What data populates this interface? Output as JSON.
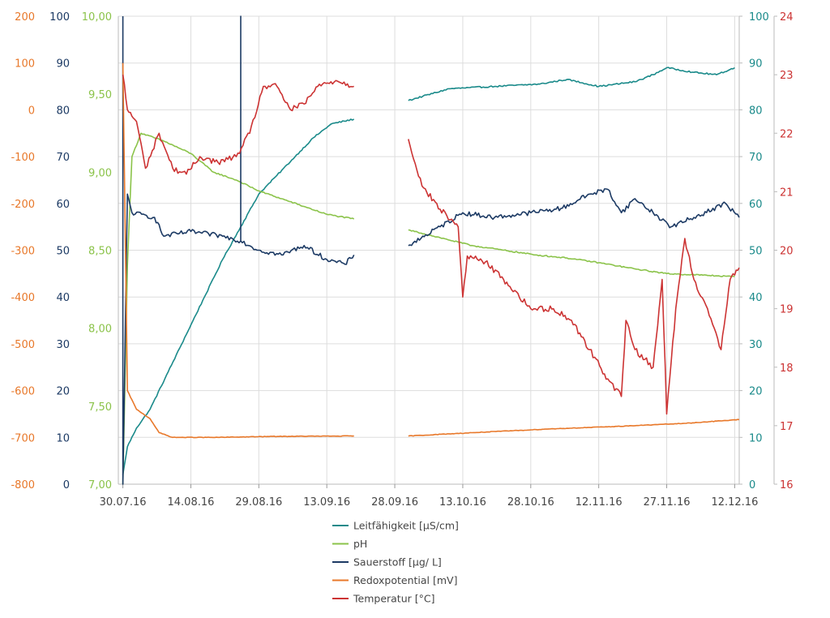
{
  "chart_data": {
    "type": "line",
    "title": "",
    "xlabel": "",
    "grid": true,
    "legend_position": "bottom",
    "x_range": [
      "2016-07-29",
      "2016-12-13"
    ],
    "x_ticks": [
      "2016-07-30",
      "2016-08-14",
      "2016-08-29",
      "2016-09-13",
      "2016-09-28",
      "2016-10-13",
      "2016-10-28",
      "2016-11-12",
      "2016-11-27",
      "2016-12-12"
    ],
    "x_tick_labels": [
      "30.07.16",
      "14.08.16",
      "29.08.16",
      "13.09.16",
      "28.09.16",
      "13.10.16",
      "28.10.16",
      "12.11.16",
      "27.11.16",
      "12.12.16"
    ],
    "axes": [
      {
        "id": "redox",
        "side": "left",
        "color": "#e8782a",
        "range": [
          -800,
          200
        ],
        "ticks": [
          200,
          100,
          0,
          -100,
          -200,
          -300,
          -400,
          -500,
          -600,
          -700,
          -800
        ]
      },
      {
        "id": "oxygen",
        "side": "left",
        "color": "#1c3a64",
        "range": [
          0,
          100
        ],
        "ticks": [
          100,
          90,
          80,
          70,
          60,
          50,
          40,
          30,
          20,
          10,
          0
        ]
      },
      {
        "id": "ph",
        "side": "left",
        "color": "#8bc34a",
        "range": [
          7.0,
          10.0
        ],
        "ticks": [
          "10,00",
          "9,50",
          "9,00",
          "8,50",
          "8,00",
          "7,50",
          "7,00"
        ]
      },
      {
        "id": "conductivity",
        "side": "right",
        "color": "#1a8a8a",
        "range": [
          0,
          100
        ],
        "ticks": [
          100,
          90,
          80,
          70,
          60,
          50,
          40,
          30,
          20,
          10,
          0
        ]
      },
      {
        "id": "temperature",
        "side": "right",
        "color": "#cc3333",
        "range": [
          16,
          24
        ],
        "ticks": [
          24,
          23,
          22,
          21,
          20,
          19,
          18,
          17,
          16
        ]
      }
    ],
    "series": [
      {
        "name": "Leitfähigkeit [µS/cm]",
        "axis": "conductivity",
        "color": "#1a8a8a",
        "segments": [
          [
            [
              "2016-07-30",
              2
            ],
            [
              "2016-07-31",
              8
            ],
            [
              "2016-08-02",
              12
            ],
            [
              "2016-08-05",
              16
            ],
            [
              "2016-08-09",
              24
            ],
            [
              "2016-08-13",
              32
            ],
            [
              "2016-08-17",
              40
            ],
            [
              "2016-08-21",
              48
            ],
            [
              "2016-08-25",
              55
            ],
            [
              "2016-08-29",
              62
            ],
            [
              "2016-09-02",
              66
            ],
            [
              "2016-09-06",
              70
            ],
            [
              "2016-09-10",
              74
            ],
            [
              "2016-09-14",
              77
            ],
            [
              "2016-09-19",
              78
            ]
          ],
          [
            [
              "2016-10-01",
              82
            ],
            [
              "2016-10-10",
              84.5
            ],
            [
              "2016-10-20",
              85
            ],
            [
              "2016-10-30",
              85.5
            ],
            [
              "2016-11-05",
              86.5
            ],
            [
              "2016-11-12",
              85
            ],
            [
              "2016-11-20",
              86
            ],
            [
              "2016-11-24",
              87.5
            ],
            [
              "2016-11-27",
              89
            ],
            [
              "2016-12-03",
              88
            ],
            [
              "2016-12-08",
              87.5
            ],
            [
              "2016-12-12",
              89
            ]
          ]
        ]
      },
      {
        "name": "pH",
        "axis": "ph",
        "color": "#8bc34a",
        "segments": [
          [
            [
              "2016-07-30",
              7.0
            ],
            [
              "2016-07-31",
              8.4
            ],
            [
              "2016-08-01",
              9.1
            ],
            [
              "2016-08-03",
              9.25
            ],
            [
              "2016-08-08",
              9.2
            ],
            [
              "2016-08-14",
              9.12
            ],
            [
              "2016-08-19",
              9.0
            ],
            [
              "2016-08-24",
              8.95
            ],
            [
              "2016-08-29",
              8.88
            ],
            [
              "2016-09-03",
              8.83
            ],
            [
              "2016-09-08",
              8.78
            ],
            [
              "2016-09-13",
              8.73
            ],
            [
              "2016-09-19",
              8.7
            ]
          ],
          [
            [
              "2016-10-01",
              8.63
            ],
            [
              "2016-10-08",
              8.58
            ],
            [
              "2016-10-15",
              8.53
            ],
            [
              "2016-10-22",
              8.5
            ],
            [
              "2016-10-29",
              8.47
            ],
            [
              "2016-11-05",
              8.45
            ],
            [
              "2016-11-12",
              8.42
            ],
            [
              "2016-11-20",
              8.38
            ],
            [
              "2016-11-27",
              8.35
            ],
            [
              "2016-12-05",
              8.34
            ],
            [
              "2016-12-12",
              8.33
            ]
          ]
        ]
      },
      {
        "name": "Sauerstoff [µg/ L]",
        "axis": "oxygen",
        "color": "#1c3a64",
        "segments": [
          [
            [
              "2016-07-30",
              100
            ],
            [
              "2016-07-30",
              0
            ],
            [
              "2016-07-31",
              62
            ],
            [
              "2016-08-01",
              58
            ],
            [
              "2016-08-06",
              57
            ],
            [
              "2016-08-08",
              53
            ],
            [
              "2016-08-14",
              54
            ],
            [
              "2016-08-21",
              53
            ],
            [
              "2016-08-25",
              52
            ],
            [
              "2016-08-25",
              100
            ],
            [
              "2016-08-25",
              52
            ],
            [
              "2016-08-29",
              50
            ],
            [
              "2016-09-03",
              49
            ],
            [
              "2016-09-08",
              51
            ],
            [
              "2016-09-13",
              48
            ],
            [
              "2016-09-17",
              47
            ],
            [
              "2016-09-19",
              49
            ]
          ],
          [
            [
              "2016-10-01",
              51
            ],
            [
              "2016-10-08",
              55
            ],
            [
              "2016-10-13",
              58
            ],
            [
              "2016-10-20",
              57
            ],
            [
              "2016-10-28",
              58
            ],
            [
              "2016-11-04",
              59
            ],
            [
              "2016-11-10",
              62
            ],
            [
              "2016-11-14",
              63
            ],
            [
              "2016-11-17",
              58
            ],
            [
              "2016-11-20",
              61
            ],
            [
              "2016-11-24",
              58
            ],
            [
              "2016-11-28",
              55
            ],
            [
              "2016-12-03",
              57
            ],
            [
              "2016-12-10",
              60
            ],
            [
              "2016-12-13",
              57
            ]
          ]
        ]
      },
      {
        "name": "Redoxpotential [mV]",
        "axis": "redox",
        "color": "#e8782a",
        "segments": [
          [
            [
              "2016-07-30",
              100
            ],
            [
              "2016-07-31",
              -600
            ],
            [
              "2016-08-02",
              -640
            ],
            [
              "2016-08-05",
              -660
            ],
            [
              "2016-08-07",
              -690
            ],
            [
              "2016-08-10",
              -700
            ],
            [
              "2016-08-20",
              -700
            ],
            [
              "2016-09-01",
              -698
            ],
            [
              "2016-09-19",
              -697
            ]
          ],
          [
            [
              "2016-10-01",
              -697
            ],
            [
              "2016-10-15",
              -690
            ],
            [
              "2016-11-01",
              -682
            ],
            [
              "2016-11-15",
              -677
            ],
            [
              "2016-12-01",
              -670
            ],
            [
              "2016-12-13",
              -662
            ]
          ]
        ]
      },
      {
        "name": "Temperatur [°C]",
        "axis": "temperature",
        "color": "#cc3333",
        "segments": [
          [
            [
              "2016-07-30",
              23
            ],
            [
              "2016-07-31",
              22.4
            ],
            [
              "2016-08-02",
              22.2
            ],
            [
              "2016-08-04",
              21.4
            ],
            [
              "2016-08-07",
              22
            ],
            [
              "2016-08-10",
              21.4
            ],
            [
              "2016-08-13",
              21.3
            ],
            [
              "2016-08-16",
              21.6
            ],
            [
              "2016-08-20",
              21.5
            ],
            [
              "2016-08-24",
              21.6
            ],
            [
              "2016-08-27",
              22
            ],
            [
              "2016-08-30",
              22.8
            ],
            [
              "2016-09-02",
              22.8
            ],
            [
              "2016-09-05",
              22.4
            ],
            [
              "2016-09-08",
              22.5
            ],
            [
              "2016-09-11",
              22.8
            ],
            [
              "2016-09-15",
              22.9
            ],
            [
              "2016-09-19",
              22.8
            ]
          ],
          [
            [
              "2016-10-01",
              21.9
            ],
            [
              "2016-10-04",
              21.1
            ],
            [
              "2016-10-08",
              20.7
            ],
            [
              "2016-10-12",
              20.4
            ],
            [
              "2016-10-13",
              19.2
            ],
            [
              "2016-10-14",
              19.9
            ],
            [
              "2016-10-18",
              19.8
            ],
            [
              "2016-10-22",
              19.5
            ],
            [
              "2016-10-28",
              19.0
            ],
            [
              "2016-11-02",
              19.0
            ],
            [
              "2016-11-06",
              18.8
            ],
            [
              "2016-11-10",
              18.3
            ],
            [
              "2016-11-14",
              17.8
            ],
            [
              "2016-11-17",
              17.5
            ],
            [
              "2016-11-18",
              18.8
            ],
            [
              "2016-11-20",
              18.3
            ],
            [
              "2016-11-24",
              18.0
            ],
            [
              "2016-11-26",
              19.5
            ],
            [
              "2016-11-27",
              17.2
            ],
            [
              "2016-11-29",
              19.0
            ],
            [
              "2016-12-01",
              20.2
            ],
            [
              "2016-12-03",
              19.5
            ],
            [
              "2016-12-06",
              19.0
            ],
            [
              "2016-12-09",
              18.3
            ],
            [
              "2016-12-11",
              19.5
            ],
            [
              "2016-12-13",
              19.7
            ]
          ]
        ]
      }
    ]
  }
}
